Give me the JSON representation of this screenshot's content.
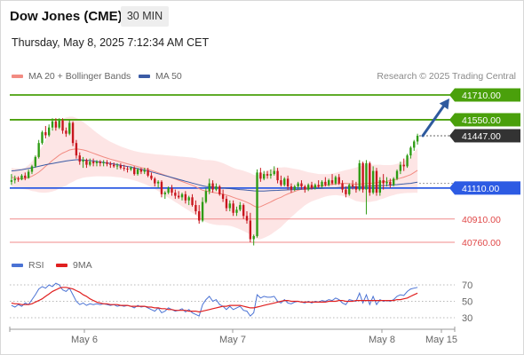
{
  "header": {
    "instrument": "Dow Jones (CME)",
    "timeframe": "30 MIN",
    "datetime": "Thursday, May 8, 2025 7:12:34 AM CET"
  },
  "legend": {
    "ma20": {
      "label": "MA 20 + Bollinger Bands",
      "color": "#f28b82"
    },
    "ma50": {
      "label": "MA 50",
      "color": "#3b5ba5"
    },
    "credit": "Research © 2025 Trading Central"
  },
  "rsi_legend": {
    "rsi": {
      "label": "RSI",
      "color": "#4a72d4"
    },
    "ma9": {
      "label": "9MA",
      "color": "#e02020"
    }
  },
  "colors": {
    "resistance": "#4aa00b",
    "pivot": "#2d5be3",
    "support": "#f08a8a",
    "current": "#333333",
    "up_candle": "#2e9c14",
    "down_candle": "#c8161e",
    "band_fill": "#fde2e2",
    "arrow": "#2e5a9e"
  },
  "chart_data": {
    "type": "candlestick",
    "x_ticks": [
      "May 6",
      "May 7",
      "May 8",
      "May 15"
    ],
    "price_levels": [
      {
        "label": "41710.00",
        "value": 41710,
        "kind": "resistance"
      },
      {
        "label": "41550.00",
        "value": 41550,
        "kind": "resistance"
      },
      {
        "label": "41447.00",
        "value": 41447,
        "kind": "current"
      },
      {
        "label": "41110.00",
        "value": 41110,
        "kind": "pivot"
      },
      {
        "label": "40910.00",
        "value": 40910,
        "kind": "support"
      },
      {
        "label": "40760.00",
        "value": 40760,
        "kind": "support"
      }
    ],
    "target": {
      "from": 41447,
      "to": 41710
    },
    "rsi_ticks": [
      "70",
      "50",
      "30"
    ],
    "ohlc": [
      [
        41150,
        41200,
        41130,
        41160
      ],
      [
        41160,
        41190,
        41140,
        41170
      ],
      [
        41170,
        41185,
        41150,
        41165
      ],
      [
        41165,
        41200,
        41160,
        41190
      ],
      [
        41190,
        41210,
        41160,
        41175
      ],
      [
        41175,
        41230,
        41170,
        41215
      ],
      [
        41215,
        41260,
        41200,
        41250
      ],
      [
        41250,
        41320,
        41240,
        41310
      ],
      [
        41310,
        41420,
        41300,
        41400
      ],
      [
        41400,
        41480,
        41390,
        41470
      ],
      [
        41470,
        41510,
        41430,
        41450
      ],
      [
        41450,
        41520,
        41440,
        41500
      ],
      [
        41500,
        41560,
        41480,
        41540
      ],
      [
        41540,
        41560,
        41480,
        41500
      ],
      [
        41500,
        41560,
        41490,
        41545
      ],
      [
        41545,
        41560,
        41460,
        41480
      ],
      [
        41480,
        41500,
        41440,
        41460
      ],
      [
        41460,
        41550,
        41450,
        41530
      ],
      [
        41530,
        41540,
        41380,
        41400
      ],
      [
        41400,
        41420,
        41300,
        41320
      ],
      [
        41320,
        41340,
        41260,
        41280
      ],
      [
        41280,
        41310,
        41240,
        41290
      ],
      [
        41290,
        41300,
        41240,
        41260
      ],
      [
        41260,
        41300,
        41250,
        41280
      ],
      [
        41280,
        41300,
        41250,
        41270
      ],
      [
        41270,
        41290,
        41250,
        41280
      ],
      [
        41280,
        41290,
        41250,
        41270
      ],
      [
        41270,
        41290,
        41250,
        41275
      ],
      [
        41275,
        41290,
        41250,
        41265
      ],
      [
        41265,
        41280,
        41240,
        41260
      ],
      [
        41260,
        41275,
        41240,
        41250
      ],
      [
        41250,
        41270,
        41230,
        41255
      ],
      [
        41255,
        41270,
        41230,
        41240
      ],
      [
        41240,
        41260,
        41220,
        41235
      ],
      [
        41235,
        41250,
        41210,
        41230
      ],
      [
        41230,
        41250,
        41220,
        41240
      ],
      [
        41240,
        41250,
        41190,
        41200
      ],
      [
        41200,
        41240,
        41190,
        41230
      ],
      [
        41230,
        41240,
        41200,
        41215
      ],
      [
        41215,
        41240,
        41200,
        41225
      ],
      [
        41225,
        41240,
        41180,
        41190
      ],
      [
        41190,
        41210,
        41160,
        41170
      ],
      [
        41170,
        41180,
        41120,
        41140
      ],
      [
        41140,
        41160,
        41110,
        41150
      ],
      [
        41150,
        41160,
        41050,
        41070
      ],
      [
        41070,
        41090,
        41040,
        41080
      ],
      [
        41080,
        41120,
        41070,
        41110
      ],
      [
        41110,
        41130,
        41060,
        41080
      ],
      [
        41080,
        41100,
        41040,
        41060
      ],
      [
        41060,
        41090,
        41040,
        41050
      ],
      [
        41050,
        41080,
        41030,
        41070
      ],
      [
        41070,
        41090,
        41010,
        41030
      ],
      [
        41030,
        41060,
        41000,
        41050
      ],
      [
        41050,
        41070,
        40990,
        41000
      ],
      [
        41000,
        41030,
        40940,
        40960
      ],
      [
        40960,
        41000,
        40880,
        40900
      ],
      [
        40900,
        41050,
        40890,
        41020
      ],
      [
        41020,
        41110,
        41010,
        41090
      ],
      [
        41090,
        41170,
        41070,
        41140
      ],
      [
        41140,
        41160,
        41080,
        41100
      ],
      [
        41100,
        41140,
        41090,
        41120
      ],
      [
        41120,
        41130,
        41060,
        41070
      ],
      [
        41070,
        41100,
        41020,
        41040
      ],
      [
        41040,
        41060,
        40960,
        40980
      ],
      [
        40980,
        41030,
        40960,
        41010
      ],
      [
        41010,
        41030,
        40930,
        40950
      ],
      [
        40950,
        40990,
        40930,
        40970
      ],
      [
        40970,
        41020,
        40960,
        41000
      ],
      [
        41000,
        41010,
        40910,
        40930
      ],
      [
        40930,
        40960,
        40880,
        40900
      ],
      [
        40900,
        40950,
        40760,
        40780
      ],
      [
        40780,
        40810,
        40740,
        40800
      ],
      [
        40800,
        41230,
        40790,
        41210
      ],
      [
        41210,
        41240,
        41150,
        41170
      ],
      [
        41170,
        41220,
        41160,
        41200
      ],
      [
        41200,
        41220,
        41170,
        41190
      ],
      [
        41190,
        41230,
        41170,
        41200
      ],
      [
        41200,
        41250,
        41190,
        41220
      ],
      [
        41220,
        41240,
        41140,
        41160
      ],
      [
        41160,
        41190,
        41120,
        41130
      ],
      [
        41130,
        41180,
        41120,
        41170
      ],
      [
        41170,
        41190,
        41100,
        41120
      ],
      [
        41120,
        41140,
        41080,
        41100
      ],
      [
        41100,
        41130,
        41090,
        41120
      ],
      [
        41120,
        41150,
        41100,
        41140
      ],
      [
        41140,
        41160,
        41100,
        41120
      ],
      [
        41120,
        41130,
        41080,
        41100
      ],
      [
        41100,
        41140,
        41090,
        41130
      ],
      [
        41130,
        41150,
        41100,
        41110
      ],
      [
        41110,
        41140,
        41100,
        41130
      ],
      [
        41130,
        41160,
        41110,
        41120
      ],
      [
        41120,
        41160,
        41110,
        41150
      ],
      [
        41150,
        41180,
        41120,
        41130
      ],
      [
        41130,
        41170,
        41120,
        41160
      ],
      [
        41160,
        41200,
        41130,
        41140
      ],
      [
        41140,
        41190,
        41130,
        41180
      ],
      [
        41180,
        41200,
        41130,
        41140
      ],
      [
        41140,
        41160,
        41080,
        41100
      ],
      [
        41100,
        41120,
        41050,
        41070
      ],
      [
        41070,
        41140,
        41060,
        41130
      ],
      [
        41130,
        41160,
        41100,
        41120
      ],
      [
        41120,
        41150,
        41080,
        41100
      ],
      [
        41100,
        41290,
        41090,
        41270
      ],
      [
        41270,
        41280,
        41080,
        41100
      ],
      [
        41100,
        41290,
        40940,
        41270
      ],
      [
        41270,
        41280,
        41060,
        41080
      ],
      [
        41080,
        41250,
        41070,
        41220
      ],
      [
        41220,
        41240,
        41060,
        41080
      ],
      [
        41080,
        41180,
        41060,
        41160
      ],
      [
        41160,
        41200,
        41100,
        41140
      ],
      [
        41140,
        41180,
        41120,
        41150
      ],
      [
        41150,
        41170,
        41110,
        41130
      ],
      [
        41130,
        41180,
        41120,
        41170
      ],
      [
        41170,
        41230,
        41160,
        41220
      ],
      [
        41220,
        41280,
        41200,
        41260
      ],
      [
        41260,
        41300,
        41220,
        41250
      ],
      [
        41250,
        41330,
        41240,
        41320
      ],
      [
        41320,
        41380,
        41300,
        41370
      ],
      [
        41370,
        41420,
        41350,
        41410
      ],
      [
        41410,
        41460,
        41390,
        41447
      ]
    ],
    "ma20": [
      41180,
      41175,
      41172,
      41170,
      41172,
      41178,
      41186,
      41198,
      41212,
      41230,
      41250,
      41268,
      41288,
      41305,
      41322,
      41335,
      41345,
      41355,
      41360,
      41362,
      41360,
      41356,
      41350,
      41342,
      41334,
      41326,
      41318,
      41310,
      41303,
      41296,
      41290,
      41284,
      41278,
      41272,
      41266,
      41260,
      41254,
      41248,
      41242,
      41236,
      41230,
      41223,
      41216,
      41208,
      41200,
      41192,
      41184,
      41176,
      41168,
      41160,
      41152,
      41144,
      41136,
      41128,
      41118,
      41106,
      41096,
      41090,
      41086,
      41082,
      41078,
      41074,
      41070,
      41065,
      41058,
      41050,
      41042,
      41035,
      41027,
      41018,
      41008,
      40995,
      40985,
      40990,
      41000,
      41010,
      41020,
      41032,
      41042,
      41050,
      41062,
      41072,
      41080,
      41088,
      41096,
      41102,
      41108,
      41112,
      41116,
      41118,
      41120,
      41124,
      41127,
      41130,
      41133,
      41136,
      41138,
      41140,
      41140,
      41138,
      41136,
      41134,
      41136,
      41136,
      41140,
      41140,
      41142,
      41144,
      41148,
      41150,
      41154,
      41158,
      41162,
      41168,
      41174,
      41180,
      41188,
      41196,
      41210,
      41224
    ],
    "ma50": [
      41220,
      41222,
      41225,
      41228,
      41232,
      41236,
      41240,
      41245,
      41250,
      41255,
      41260,
      41264,
      41268,
      41272,
      41276,
      41280,
      41284,
      41287,
      41290,
      41292,
      41292,
      41291,
      41289,
      41287,
      41284,
      41281,
      41278,
      41275,
      41272,
      41268,
      41265,
      41261,
      41257,
      41253,
      41249,
      41245,
      41240,
      41235,
      41230,
      41225,
      41220,
      41214,
      41208,
      41202,
      41196,
      41190,
      41184,
      41178,
      41172,
      41166,
      41160,
      41154,
      41148,
      41142,
      41136,
      41130,
      41124,
      41120,
      41118,
      41116,
      41114,
      41112,
      41110,
      41108,
      41106,
      41104,
      41102,
      41100,
      41098,
      41096,
      41094,
      41092,
      41090,
      41090,
      41091,
      41092,
      41093,
      41094,
      41095,
      41096,
      41097,
      41098,
      41099,
      41100,
      41101,
      41102,
      41103,
      41104,
      41105,
      41106,
      41107,
      41108,
      41109,
      41110,
      41111,
      41112,
      41113,
      41114,
      41115,
      41116,
      41117,
      41118,
      41119,
      41120,
      41121,
      41122,
      41123,
      41124,
      41125,
      41126,
      41127,
      41128,
      41130,
      41132,
      41134,
      41136,
      41138,
      41140,
      41144,
      41148
    ],
    "bb_width": [
      60,
      62,
      64,
      66,
      70,
      80,
      95,
      110,
      130,
      150,
      170,
      185,
      200,
      210,
      215,
      218,
      220,
      215,
      210,
      200,
      190,
      180,
      170,
      160,
      150,
      140,
      132,
      125,
      118,
      112,
      108,
      104,
      100,
      98,
      96,
      95,
      95,
      96,
      98,
      100,
      104,
      108,
      112,
      118,
      124,
      130,
      136,
      142,
      148,
      154,
      160,
      166,
      172,
      178,
      184,
      190,
      196,
      200,
      204,
      206,
      206,
      204,
      200,
      196,
      192,
      190,
      190,
      192,
      194,
      196,
      198,
      200,
      205,
      210,
      212,
      212,
      210,
      206,
      200,
      192,
      182,
      170,
      158,
      146,
      134,
      122,
      110,
      100,
      92,
      86,
      80,
      76,
      72,
      70,
      70,
      72,
      76,
      80,
      86,
      92,
      100,
      108,
      114,
      118,
      120,
      120,
      118,
      116,
      112,
      108,
      104,
      100,
      98,
      98,
      100,
      104,
      110,
      118,
      130,
      145
    ],
    "rsi": [
      45,
      43,
      46,
      44,
      48,
      46,
      52,
      58,
      65,
      68,
      66,
      70,
      68,
      72,
      70,
      64,
      62,
      66,
      58,
      50,
      46,
      48,
      45,
      47,
      46,
      47,
      46,
      47,
      46,
      45,
      46,
      44,
      45,
      44,
      45,
      44,
      42,
      45,
      43,
      44,
      42,
      40,
      38,
      42,
      36,
      38,
      42,
      40,
      38,
      39,
      41,
      37,
      40,
      36,
      34,
      32,
      46,
      52,
      56,
      50,
      52,
      46,
      44,
      40,
      44,
      40,
      42,
      44,
      39,
      38,
      32,
      36,
      58,
      54,
      56,
      55,
      55,
      56,
      50,
      48,
      52,
      48,
      47,
      49,
      50,
      49,
      48,
      50,
      48,
      50,
      49,
      51,
      50,
      52,
      51,
      54,
      52,
      48,
      46,
      52,
      51,
      50,
      60,
      48,
      58,
      46,
      56,
      46,
      52,
      50,
      51,
      50,
      52,
      56,
      58,
      57,
      62,
      65,
      66,
      67
    ],
    "rsi_ma9": [
      48,
      47,
      47,
      46,
      46,
      46,
      47,
      49,
      51,
      53,
      56,
      59,
      62,
      64,
      66,
      67,
      67,
      66,
      65,
      63,
      61,
      58,
      56,
      53,
      51,
      49,
      48,
      47,
      47,
      46,
      46,
      46,
      45,
      45,
      45,
      44,
      44,
      44,
      44,
      44,
      43,
      43,
      42,
      42,
      41,
      41,
      40,
      40,
      39,
      39,
      39,
      39,
      38,
      38,
      38,
      37,
      38,
      39,
      40,
      41,
      42,
      43,
      44,
      44,
      45,
      45,
      45,
      45,
      44,
      43,
      42,
      42,
      43,
      44,
      45,
      46,
      47,
      48,
      49,
      50,
      51,
      51,
      50,
      50,
      50,
      49,
      49,
      49,
      49,
      49,
      49,
      49,
      49,
      50,
      50,
      50,
      51,
      51,
      50,
      50,
      50,
      51,
      51,
      51,
      51,
      51,
      51,
      51,
      51,
      51,
      51,
      51,
      51,
      52,
      52,
      53,
      54,
      56,
      58,
      60
    ]
  }
}
